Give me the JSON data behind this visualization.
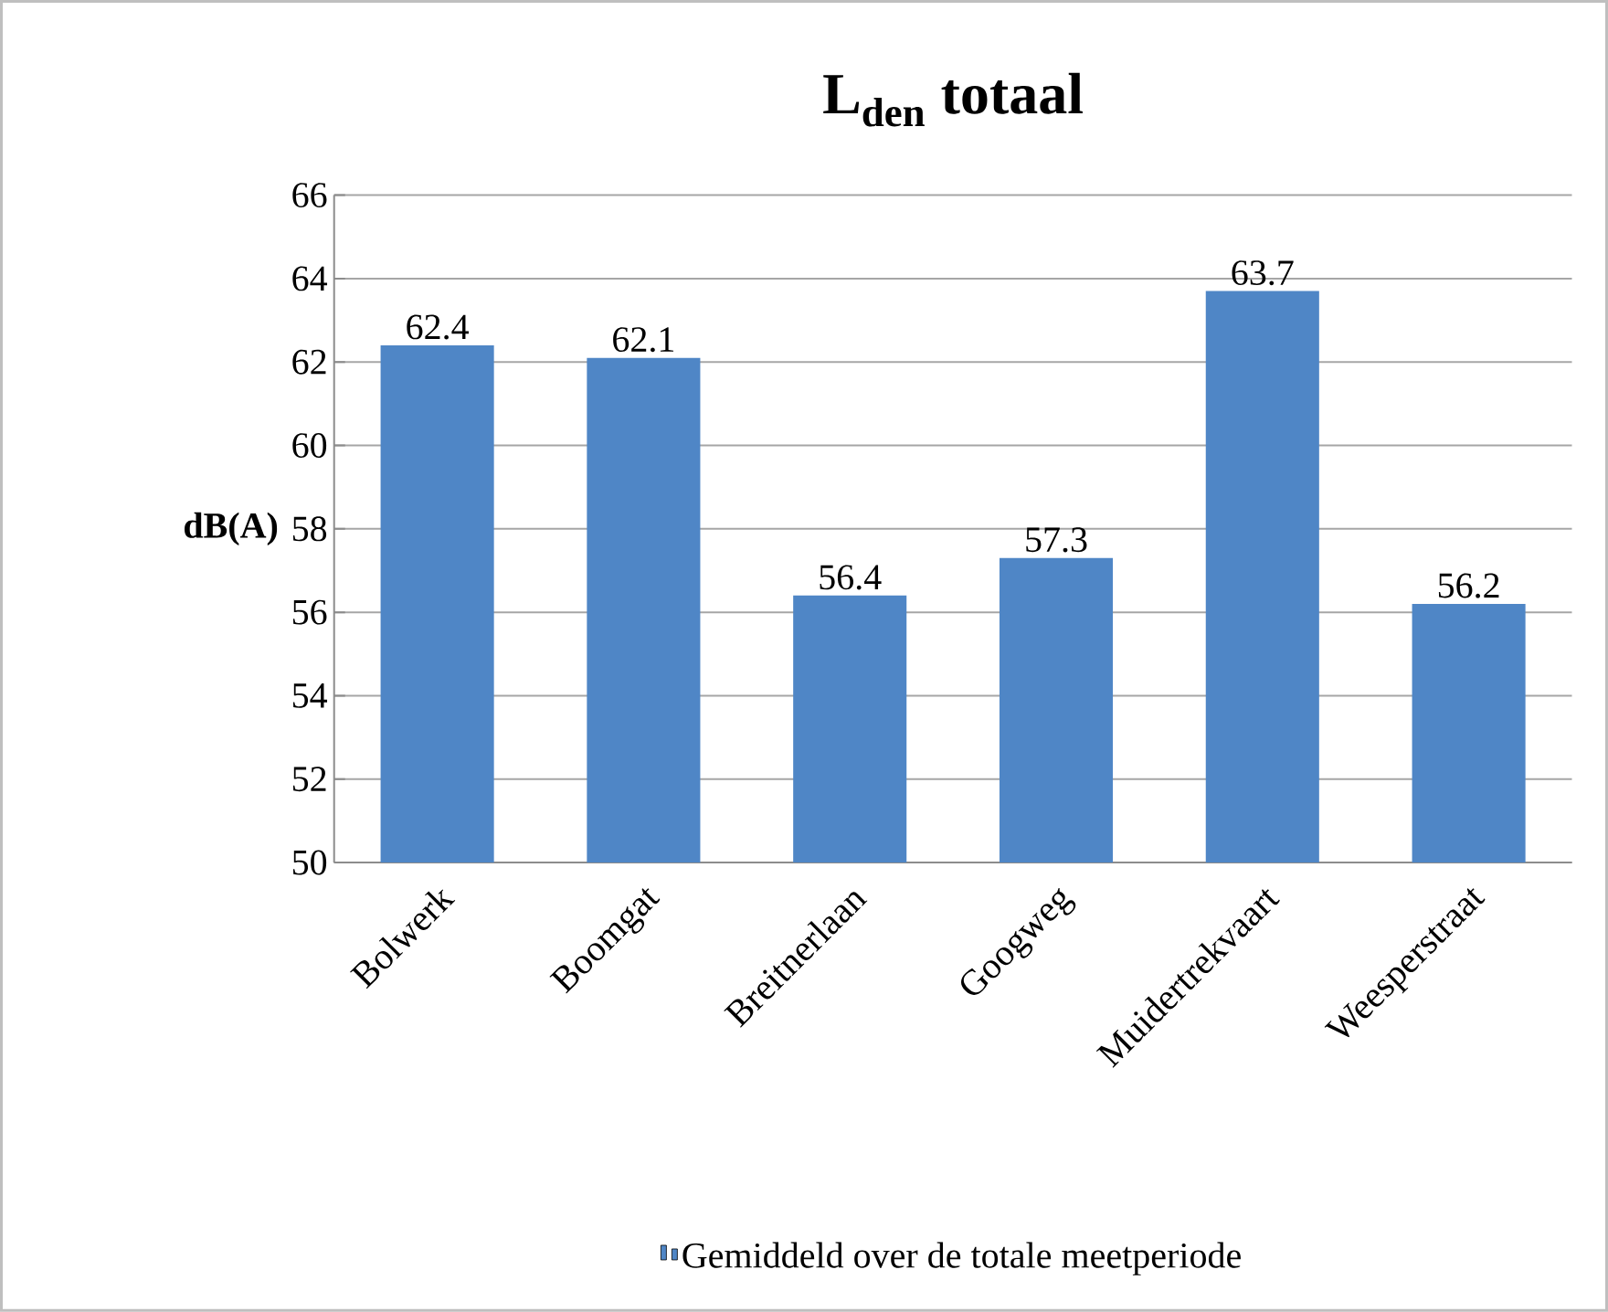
{
  "chart_data": {
    "type": "bar",
    "title": "L$_{den}$ totaal",
    "ylabel": "dB(A)",
    "categories": [
      "Bolwerk",
      "Boomgat",
      "Breitnerlaan",
      "Googweg",
      "Muidertrekvaart",
      "Weesperstraat"
    ],
    "series": [
      {
        "name": "Gemiddeld over de totale meetperiode",
        "color": "#4f86c6",
        "values": [
          62.4,
          62.1,
          56.4,
          57.3,
          63.7,
          56.2
        ]
      }
    ],
    "ylim": [
      50,
      66
    ],
    "yticks": [
      50,
      52,
      54,
      56,
      58,
      60,
      62,
      64,
      66
    ],
    "grid": "y",
    "legend": "bottom",
    "data_labels": true
  }
}
